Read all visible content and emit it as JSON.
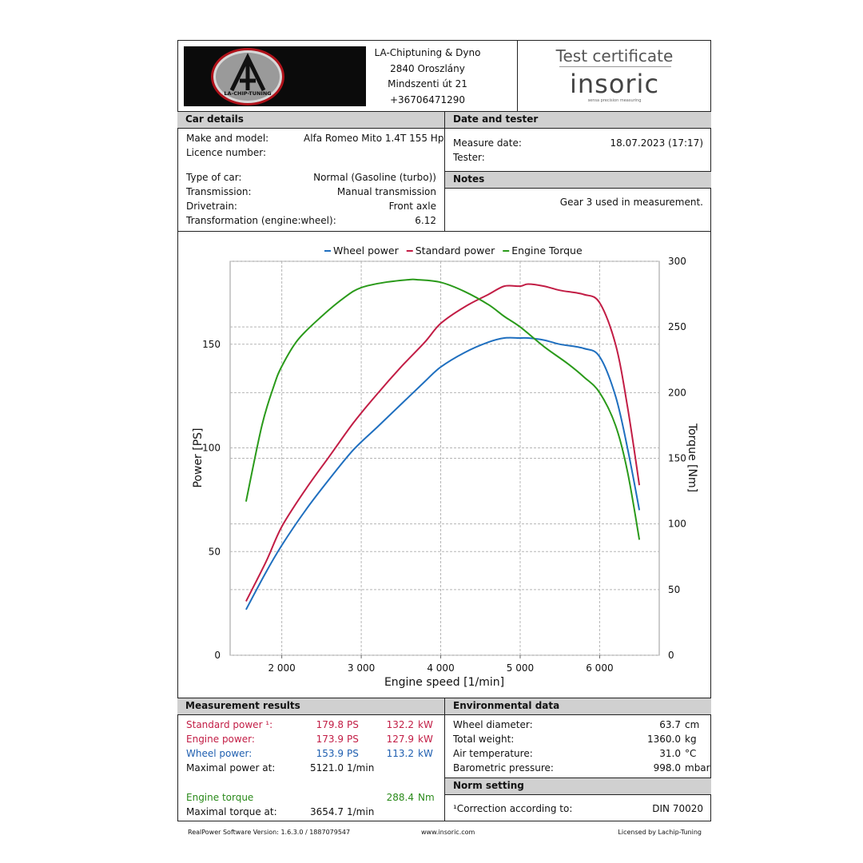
{
  "header": {
    "company_lines": [
      "LA-Chiptuning & Dyno",
      "2840 Oroszlány",
      "Mindszenti út 21",
      "+36706471290"
    ],
    "logo_text": "LA-CHIP-TUNING",
    "certificate_title": "Test certificate",
    "brand": "insoric",
    "brand_tagline": "sensa precision measuring"
  },
  "car_details": {
    "title": "Car details",
    "rows_top": [
      {
        "label": "Make and model:",
        "value": "Alfa Romeo Mito 1.4T 155 Hp"
      },
      {
        "label": "Licence number:",
        "value": ""
      }
    ],
    "rows_bottom": [
      {
        "label": "Type of car:",
        "value": "Normal (Gasoline (turbo))"
      },
      {
        "label": "Transmission:",
        "value": "Manual transmission"
      },
      {
        "label": "Drivetrain:",
        "value": "Front axle"
      },
      {
        "label": "Transformation (engine:wheel):",
        "value": "6.12"
      }
    ]
  },
  "date_tester": {
    "title": "Date and tester",
    "rows": [
      {
        "label": "Measure date:",
        "value": "18.07.2023 (17:17)"
      },
      {
        "label": "Tester:",
        "value": ""
      }
    ]
  },
  "notes": {
    "title": "Notes",
    "text": "Gear 3 used in measurement."
  },
  "chart_data": {
    "type": "line",
    "xlabel": "Engine speed [1/min]",
    "ylabel": "Power [PS]",
    "y2label": "Torque [Nm]",
    "xlim": [
      1350,
      6750
    ],
    "ylim": [
      0,
      190
    ],
    "y2lim": [
      0,
      300
    ],
    "x_ticks": [
      2000,
      3000,
      4000,
      5000,
      6000
    ],
    "x_tick_labels": [
      "2 000",
      "3 000",
      "4 000",
      "5 000",
      "6 000"
    ],
    "y_ticks": [
      0,
      50,
      100,
      150
    ],
    "y_tick_labels": [
      "0",
      "50",
      "100",
      "150"
    ],
    "y2_ticks": [
      0,
      50,
      100,
      150,
      200,
      250,
      300
    ],
    "y2_tick_labels": [
      "0",
      "50",
      "100",
      "150",
      "200",
      "250",
      "300"
    ],
    "grid": true,
    "legend_position": "top",
    "series": [
      {
        "name": "Wheel power",
        "axis": "left",
        "color": "#1f6fbf",
        "x": [
          1550,
          1800,
          2000,
          2300,
          2600,
          2900,
          3200,
          3500,
          3800,
          4000,
          4300,
          4600,
          4800,
          5000,
          5100,
          5300,
          5500,
          5800,
          6000,
          6200,
          6350,
          6500
        ],
        "y": [
          22,
          40,
          53,
          70,
          85,
          99,
          110,
          121,
          132,
          139,
          146,
          151,
          153,
          153,
          153,
          152,
          150,
          148,
          144,
          125,
          100,
          70
        ]
      },
      {
        "name": "Standard power",
        "axis": "left",
        "color": "#c21d45",
        "x": [
          1550,
          1800,
          2000,
          2300,
          2600,
          2900,
          3200,
          3500,
          3800,
          4000,
          4300,
          4600,
          4800,
          5000,
          5100,
          5300,
          5500,
          5800,
          6000,
          6200,
          6350,
          6500
        ],
        "y": [
          26,
          45,
          62,
          80,
          96,
          112,
          126,
          139,
          151,
          160,
          168,
          174,
          178,
          178,
          179,
          178,
          176,
          174,
          170,
          150,
          120,
          82
        ]
      },
      {
        "name": "Engine Torque",
        "axis": "right",
        "color": "#2a9a1a",
        "x": [
          1550,
          1750,
          1900,
          2000,
          2200,
          2500,
          2800,
          3000,
          3300,
          3600,
          3700,
          4000,
          4300,
          4600,
          4800,
          5000,
          5300,
          5600,
          5800,
          6000,
          6200,
          6350,
          6500
        ],
        "y": [
          117,
          175,
          205,
          220,
          240,
          258,
          273,
          280,
          284,
          286,
          286,
          284,
          277,
          267,
          258,
          250,
          235,
          222,
          212,
          200,
          175,
          140,
          88
        ]
      }
    ]
  },
  "measurement_results": {
    "title": "Measurement results",
    "rows": [
      {
        "label": "Standard power ¹:",
        "v1": "179.8",
        "u1": "PS",
        "v2": "132.2",
        "u2": "kW",
        "color": "#c21d45"
      },
      {
        "label": "Engine power:",
        "v1": "173.9",
        "u1": "PS",
        "v2": "127.9",
        "u2": "kW",
        "color": "#c21d45"
      },
      {
        "label": "Wheel power:",
        "v1": "153.9",
        "u1": "PS",
        "v2": "113.2",
        "u2": "kW",
        "color": "#1f5fb0"
      },
      {
        "label": "Maximal power at:",
        "v1": "5121.0",
        "u1": "1/min",
        "v2": "",
        "u2": "",
        "color": "#111111"
      }
    ],
    "torque_label": "Engine torque",
    "torque_value": "288.4",
    "torque_unit": "Nm",
    "max_torque_label": "Maximal torque at:",
    "max_torque_value": "3654.7",
    "max_torque_unit": "1/min"
  },
  "environmental": {
    "title": "Environmental data",
    "rows": [
      {
        "label": "Wheel diameter:",
        "value": "63.7",
        "unit": "cm"
      },
      {
        "label": "Total weight:",
        "value": "1360.0",
        "unit": "kg"
      },
      {
        "label": "Air temperature:",
        "value": "31.0",
        "unit": "°C"
      },
      {
        "label": "Barometric pressure:",
        "value": "998.0",
        "unit": "mbar"
      }
    ]
  },
  "norm_setting": {
    "title": "Norm setting",
    "label": "¹Correction according to:",
    "value": "DIN 70020"
  },
  "footer": {
    "left": "RealPower Software Version: 1.6.3.0 / 1887079547",
    "center": "www.insoric.com",
    "right": "Licensed by Lachip-Tuning"
  }
}
